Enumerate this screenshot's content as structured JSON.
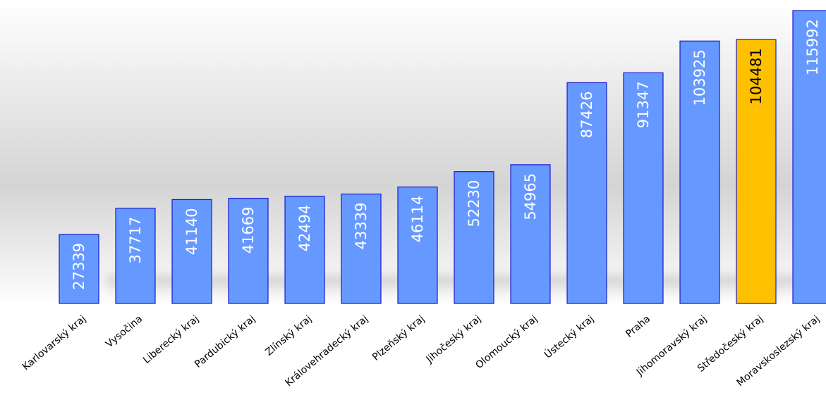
{
  "chart_data": {
    "type": "bar",
    "title": "",
    "xlabel": "",
    "ylabel": "",
    "categories": [
      "Karlovarský kraj",
      "Vysočina",
      "Liberecký kraj",
      "Pardubický kraj",
      "Zlínský kraj",
      "Královehradecký kraj",
      "Plzeňský kraj",
      "Jihočeský kraj",
      "Olomoucký kraj",
      "Ústecký kraj",
      "Praha",
      "Jihomoravský kraj",
      "Středočeský kraj",
      "Moravskoslezský kraj"
    ],
    "values": [
      27339,
      37717,
      41140,
      41669,
      42494,
      43339,
      46114,
      52230,
      54965,
      87426,
      91347,
      103925,
      104481,
      115992
    ],
    "value_labels": [
      "27339",
      "37717",
      "41140",
      "41669",
      "42494",
      "43339",
      "46114",
      "52230",
      "54965",
      "87426",
      "91347",
      "103925",
      "104481",
      "115992"
    ],
    "highlight_category": "Středočeský kraj",
    "grid": false,
    "legend": "none",
    "colors": {
      "bar": "#6699FF",
      "bar_highlight": "#FFC000",
      "bar_border": "#1A1ACC",
      "label_on_bar": "#FFFFFF",
      "label_on_highlight": "#000000",
      "axis_text": "#000000"
    }
  }
}
